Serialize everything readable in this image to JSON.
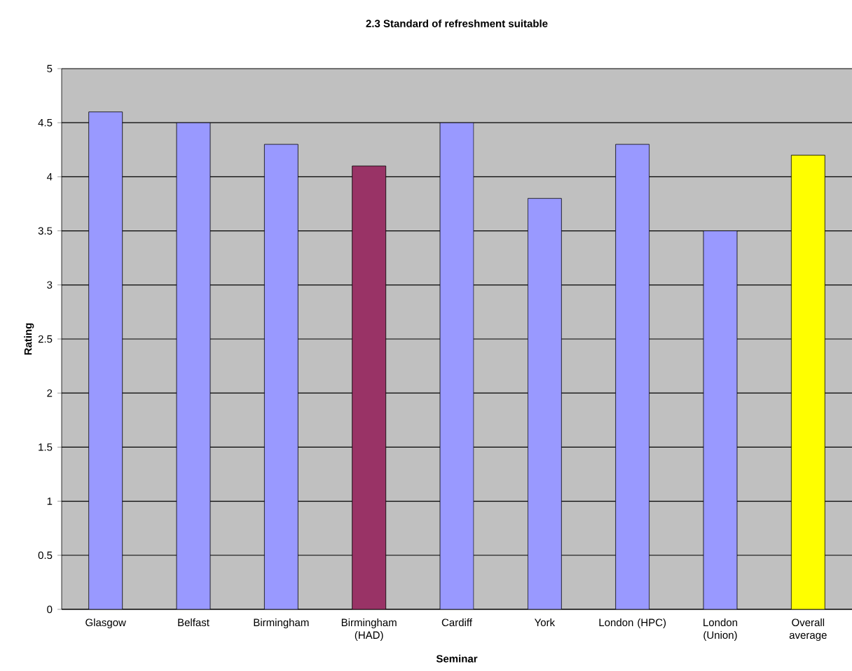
{
  "chart_data": {
    "type": "bar",
    "title": "2.3 Standard of refreshment suitable",
    "xlabel": "Seminar",
    "ylabel": "Rating",
    "categories": [
      "Glasgow",
      "Belfast",
      "Birmingham",
      "Birmingham (HAD)",
      "Cardiff",
      "York",
      "London (HPC)",
      "London (Union)",
      "Overall average"
    ],
    "values": [
      4.6,
      4.5,
      4.3,
      4.1,
      4.5,
      3.8,
      4.3,
      3.5,
      4.2
    ],
    "colors": [
      "#9999ff",
      "#9999ff",
      "#9999ff",
      "#993366",
      "#9999ff",
      "#9999ff",
      "#9999ff",
      "#9999ff",
      "#ffff00"
    ],
    "ylim": [
      0,
      5
    ],
    "yticks": [
      0,
      0.5,
      1,
      1.5,
      2,
      2.5,
      3,
      3.5,
      4,
      4.5,
      5
    ],
    "grid": "y"
  }
}
